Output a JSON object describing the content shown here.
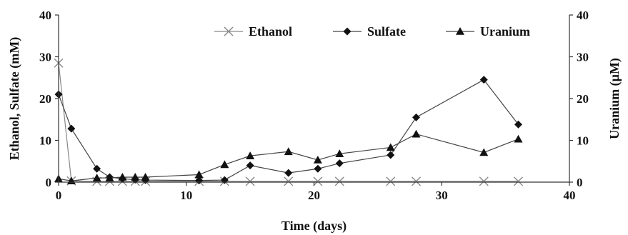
{
  "chart_data": {
    "type": "line",
    "xlabel": "Time (days)",
    "ylabel_left": "Ethanol, Sulfate (mM)",
    "ylabel_right": "Uranium (µM)",
    "xlim": [
      0,
      40
    ],
    "ylim_left": [
      0,
      40
    ],
    "ylim_right": [
      0,
      40
    ],
    "x_ticks": [
      0,
      10,
      20,
      30,
      40
    ],
    "y_ticks_left": [
      0,
      10,
      20,
      30,
      40
    ],
    "y_ticks_right": [
      0,
      10,
      20,
      30,
      40
    ],
    "grid": false,
    "legend_position": "top-right, inside plot",
    "colors": {
      "series": "#111111",
      "background": "#ffffff"
    },
    "series": [
      {
        "name": "Ethanol",
        "axis": "left",
        "marker": "x",
        "points": [
          [
            0,
            28.5
          ],
          [
            1,
            0.3
          ],
          [
            3,
            0.2
          ],
          [
            4,
            0.2
          ],
          [
            5,
            0.2
          ],
          [
            6,
            0.2
          ],
          [
            6.8,
            0.2
          ],
          [
            11,
            0.2
          ],
          [
            13,
            0.2
          ],
          [
            15,
            0.2
          ],
          [
            18,
            0.2
          ],
          [
            20.3,
            0.2
          ],
          [
            22,
            0.2
          ],
          [
            26,
            0.2
          ],
          [
            28,
            0.2
          ],
          [
            33.3,
            0.2
          ],
          [
            36,
            0.2
          ]
        ]
      },
      {
        "name": "Sulfate",
        "axis": "left",
        "marker": "diamond",
        "points": [
          [
            0,
            21
          ],
          [
            1,
            12.8
          ],
          [
            3,
            3.2
          ],
          [
            4,
            1.2
          ],
          [
            5,
            0.8
          ],
          [
            6,
            0.6
          ],
          [
            6.8,
            0.5
          ],
          [
            11,
            0.4
          ],
          [
            13,
            0.5
          ],
          [
            15,
            4
          ],
          [
            18,
            2.2
          ],
          [
            20.3,
            3.2
          ],
          [
            22,
            4.5
          ],
          [
            26,
            6.5
          ],
          [
            28,
            15.5
          ],
          [
            33.3,
            24.5
          ],
          [
            36,
            13.8
          ]
        ]
      },
      {
        "name": "Uranium",
        "axis": "right",
        "marker": "triangle",
        "points": [
          [
            0,
            0.8
          ],
          [
            1,
            0.3
          ],
          [
            3,
            1
          ],
          [
            4,
            1
          ],
          [
            5,
            1.2
          ],
          [
            6,
            1.2
          ],
          [
            6.8,
            1.2
          ],
          [
            11,
            1.8
          ],
          [
            13,
            4.2
          ],
          [
            15,
            6.3
          ],
          [
            18,
            7.3
          ],
          [
            20.3,
            5.3
          ],
          [
            22,
            6.8
          ],
          [
            26,
            8.3
          ],
          [
            28,
            11.5
          ],
          [
            33.3,
            7.1
          ],
          [
            36,
            10.3
          ]
        ]
      }
    ]
  }
}
